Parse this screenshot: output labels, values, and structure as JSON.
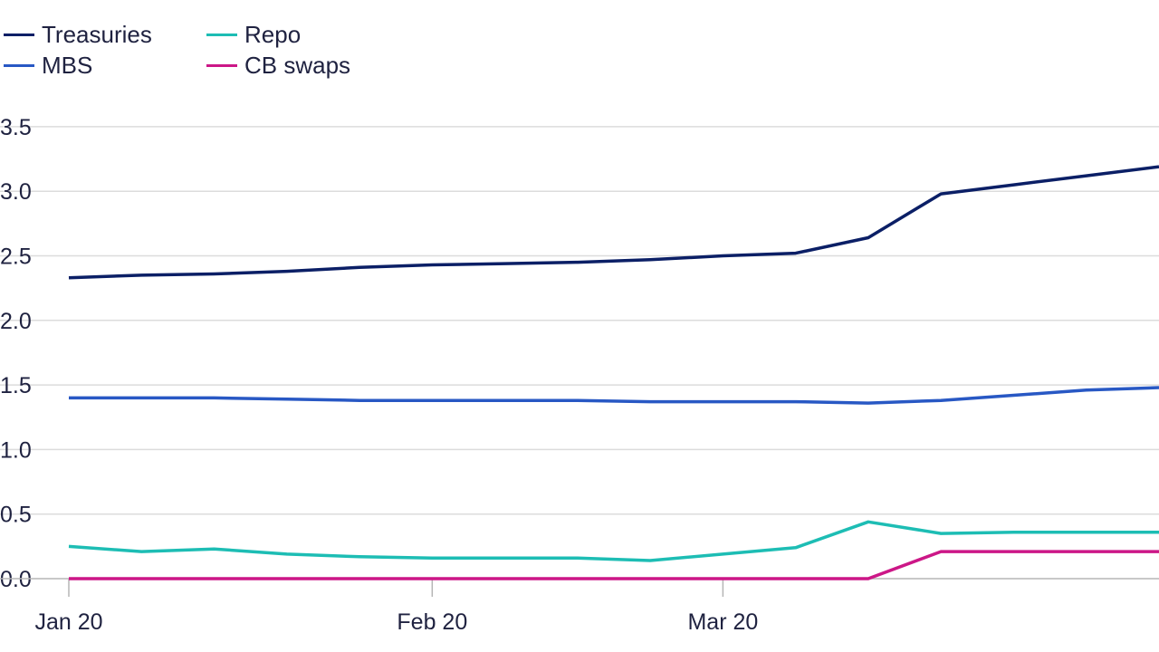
{
  "chart_data": {
    "type": "line",
    "title": "",
    "xlabel": "",
    "ylabel": "",
    "x": [
      0,
      1,
      2,
      3,
      4,
      5,
      6,
      7,
      8,
      9,
      10,
      11,
      12,
      13,
      14,
      15
    ],
    "x_ticks": [
      {
        "x": 0,
        "label": "Jan 20"
      },
      {
        "x": 5,
        "label": "Feb 20"
      },
      {
        "x": 9,
        "label": "Mar 20"
      }
    ],
    "xlim": [
      0,
      15
    ],
    "ylim": [
      0,
      3.5
    ],
    "y_ticks": [
      0.0,
      0.5,
      1.0,
      1.5,
      2.0,
      2.5,
      3.0,
      3.5
    ],
    "y_tick_labels": [
      "0.0",
      "0.5",
      "1.0",
      "1.5",
      "2.0",
      "2.5",
      "3.0",
      "3.5"
    ],
    "grid": true,
    "legend_position": "top-left",
    "series": [
      {
        "name": "Treasuries",
        "color": "#0b1f66",
        "values": [
          2.33,
          2.35,
          2.36,
          2.38,
          2.41,
          2.43,
          2.44,
          2.45,
          2.47,
          2.5,
          2.52,
          2.64,
          2.98,
          3.05,
          3.12,
          3.19
        ]
      },
      {
        "name": "MBS",
        "color": "#2858c4",
        "values": [
          1.4,
          1.4,
          1.4,
          1.39,
          1.38,
          1.38,
          1.38,
          1.38,
          1.37,
          1.37,
          1.37,
          1.36,
          1.38,
          1.42,
          1.46,
          1.48
        ]
      },
      {
        "name": "Repo",
        "color": "#1dbdb4",
        "values": [
          0.25,
          0.21,
          0.23,
          0.19,
          0.17,
          0.16,
          0.16,
          0.16,
          0.14,
          0.19,
          0.24,
          0.44,
          0.35,
          0.36,
          0.36,
          0.36
        ]
      },
      {
        "name": "CB swaps",
        "color": "#cc1787",
        "values": [
          0.0,
          0.0,
          0.0,
          0.0,
          0.0,
          0.0,
          0.0,
          0.0,
          0.0,
          0.0,
          0.0,
          0.0,
          0.21,
          0.21,
          0.21,
          0.21
        ]
      }
    ]
  }
}
